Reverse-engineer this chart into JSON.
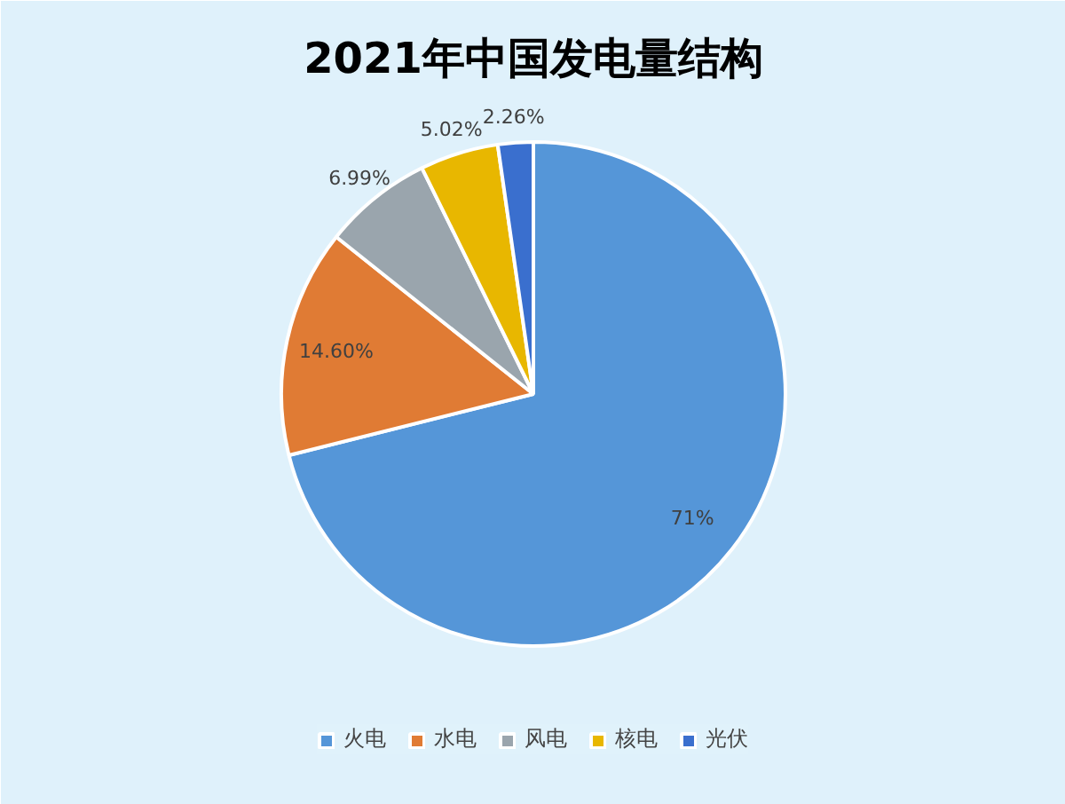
{
  "chart_data": {
    "type": "pie",
    "title": "2021年中国发电量结构",
    "categories": [
      "火电",
      "水电",
      "风电",
      "核电",
      "光伏"
    ],
    "values": [
      71,
      14.6,
      6.99,
      5.02,
      2.26
    ],
    "value_labels": [
      "71%",
      "14.60%",
      "6.99%",
      "5.02%",
      "2.26%"
    ],
    "colors": [
      "#5596d8",
      "#e07b34",
      "#9aa5ad",
      "#e8b700",
      "#3a6fce"
    ],
    "legend": "bottom"
  }
}
